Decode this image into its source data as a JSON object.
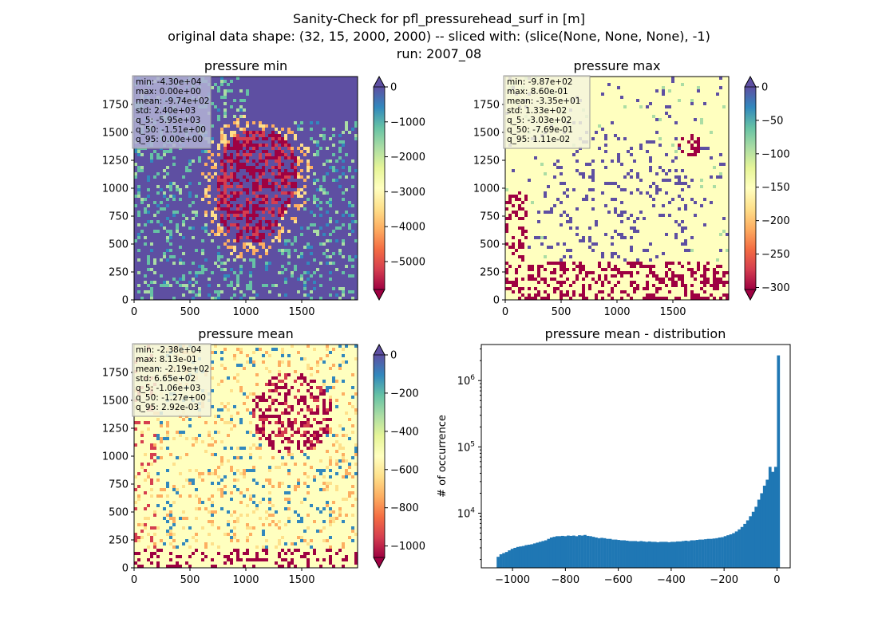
{
  "figure": {
    "title_lines": [
      "Sanity-Check for pfl_pressurehead_surf in [m]",
      "original data shape: (32, 15, 2000, 2000) -- sliced with: (slice(None, None, None), -1)",
      "run: 2007_08"
    ]
  },
  "chart_data": [
    {
      "type": "heatmap",
      "title": "pressure min",
      "colormap": "Spectral",
      "xlim": [
        0,
        2000
      ],
      "ylim": [
        0,
        2000
      ],
      "x_ticks": [
        "0",
        "500",
        "1000",
        "1500"
      ],
      "y_ticks": [
        "0",
        "250",
        "500",
        "750",
        "1000",
        "1250",
        "1500",
        "1750"
      ],
      "colorbar": {
        "vmin": -5800,
        "vmax": 0,
        "ticks": [
          0,
          -1000,
          -2000,
          -3000,
          -4000,
          -5000
        ],
        "tick_labels": [
          "0",
          "−1000",
          "−2000",
          "−3000",
          "−4000",
          "−5000"
        ],
        "extend": "both"
      },
      "stats_box": [
        "min: -4.30e+04",
        "max: 0.00e+00",
        "mean: -9.74e+02",
        "std: 2.40e+03",
        "q_5: -5.95e+03",
        "q_50: -1.51e+00",
        "q_95: 0.00e+00"
      ],
      "stats_box_color": "#b3b3d6"
    },
    {
      "type": "heatmap",
      "title": "pressure max",
      "colormap": "Spectral",
      "xlim": [
        0,
        2000
      ],
      "ylim": [
        0,
        2000
      ],
      "x_ticks": [
        "0",
        "500",
        "1000",
        "1500"
      ],
      "y_ticks": [
        "0",
        "250",
        "500",
        "750",
        "1000",
        "1250",
        "1500",
        "1750"
      ],
      "colorbar": {
        "vmin": -303,
        "vmax": 0,
        "ticks": [
          0,
          -50,
          -100,
          -150,
          -200,
          -250,
          -300
        ],
        "tick_labels": [
          "0",
          "−50",
          "−100",
          "−150",
          "−200",
          "−250",
          "−300"
        ],
        "extend": "both"
      },
      "stats_box": [
        "min: -9.87e+02",
        "max: 8.60e-01",
        "mean: -3.35e+01",
        "std: 1.33e+02",
        "q_5: -3.03e+02",
        "q_50: -7.69e-01",
        "q_95: 1.11e-02"
      ],
      "stats_box_color": "#f5f5dc"
    },
    {
      "type": "heatmap",
      "title": "pressure mean",
      "colormap": "Spectral",
      "xlim": [
        0,
        2000
      ],
      "ylim": [
        0,
        2000
      ],
      "x_ticks": [
        "0",
        "500",
        "1000",
        "1500"
      ],
      "y_ticks": [
        "0",
        "250",
        "500",
        "750",
        "1000",
        "1250",
        "1500",
        "1750"
      ],
      "colorbar": {
        "vmin": -1060,
        "vmax": 0,
        "ticks": [
          0,
          -200,
          -400,
          -600,
          -800,
          -1000
        ],
        "tick_labels": [
          "0",
          "−200",
          "−400",
          "−600",
          "−800",
          "−1000"
        ],
        "extend": "both"
      },
      "stats_box": [
        "min: -2.38e+04",
        "max: 8.13e-01",
        "mean: -2.19e+02",
        "std: 6.65e+02",
        "q_5: -1.06e+03",
        "q_50: -1.27e+00",
        "q_95: 2.92e-03"
      ],
      "stats_box_color": "#f5f5dc"
    },
    {
      "type": "bar",
      "title": "pressure mean - distribution",
      "ylabel": "# of occurrence",
      "yscale": "log",
      "xlim": [
        -1118,
        50
      ],
      "ylim": [
        1500,
        3500000
      ],
      "x_ticks": [
        -1000,
        -800,
        -600,
        -400,
        -200,
        0
      ],
      "x_tick_labels": [
        "−1000",
        "−800",
        "−600",
        "−400",
        "−200",
        "0"
      ],
      "y_ticks": [
        10000,
        100000,
        1000000
      ],
      "bar_color": "#1f77b4",
      "bin_start": -1060,
      "bin_width": 10.6,
      "counts": [
        2200,
        2400,
        2500,
        2600,
        2750,
        2900,
        3000,
        3100,
        3150,
        3200,
        3300,
        3350,
        3400,
        3500,
        3600,
        3700,
        3800,
        3900,
        4100,
        4300,
        4400,
        4500,
        4500,
        4550,
        4500,
        4600,
        4550,
        4600,
        4500,
        4650,
        4600,
        4700,
        4550,
        4500,
        4400,
        4300,
        4200,
        4250,
        4200,
        4100,
        4100,
        4000,
        4000,
        3950,
        3900,
        3900,
        3850,
        3800,
        3800,
        3800,
        3750,
        3800,
        3750,
        3700,
        3750,
        3700,
        3700,
        3650,
        3700,
        3700,
        3700,
        3650,
        3700,
        3700,
        3750,
        3750,
        3800,
        3850,
        3800,
        3900,
        3900,
        3950,
        4000,
        4000,
        4050,
        4100,
        4100,
        4150,
        4200,
        4300,
        4350,
        4500,
        4650,
        4800,
        5000,
        5300,
        5700,
        6200,
        6900,
        7800,
        9000,
        10500,
        12500,
        16000,
        20000,
        26000,
        32000,
        50000,
        42000,
        50000,
        2400000
      ]
    }
  ]
}
